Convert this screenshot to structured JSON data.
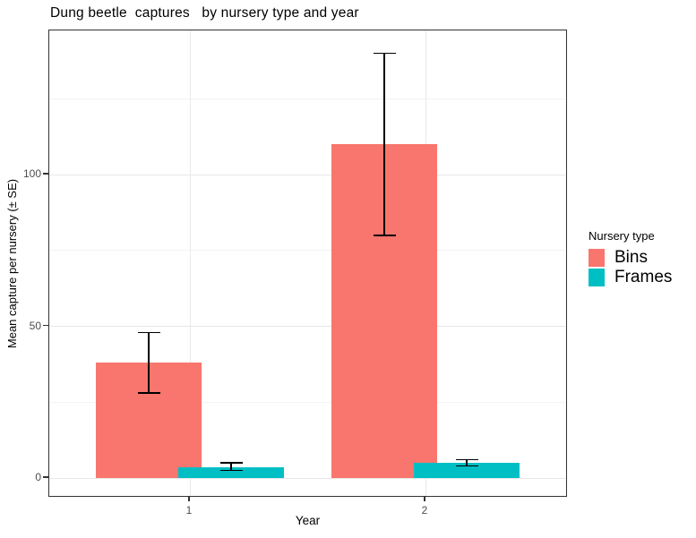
{
  "chart_data": {
    "type": "bar",
    "title": "Dung beetle  captures   by nursery type and year",
    "xlabel": "Year",
    "ylabel": "Mean capture per nursery (± SE)",
    "legend_title": "Nursery type",
    "legend_position": "right",
    "categories": [
      "1",
      "2"
    ],
    "series": [
      {
        "name": "Bins",
        "color": "#F8766D",
        "values": [
          38,
          110
        ],
        "error_upper": [
          48,
          140
        ],
        "error_lower": [
          28,
          80
        ]
      },
      {
        "name": "Frames",
        "color": "#00BFC4",
        "values": [
          3.5,
          5
        ],
        "error_upper": [
          5,
          6
        ],
        "error_lower": [
          2.5,
          4
        ]
      }
    ],
    "ylim": [
      0,
      147
    ],
    "yticks_major": [
      0,
      50,
      100
    ],
    "yticks_minor": [
      25,
      75,
      125
    ],
    "grid": true,
    "panel_border": true,
    "colors": {
      "grid_major": "#e8e8e8",
      "grid_minor": "#f3f3f3",
      "axis_text": "#4d4d4d",
      "panel_border": "#333333",
      "error_bar": "#000000"
    }
  }
}
